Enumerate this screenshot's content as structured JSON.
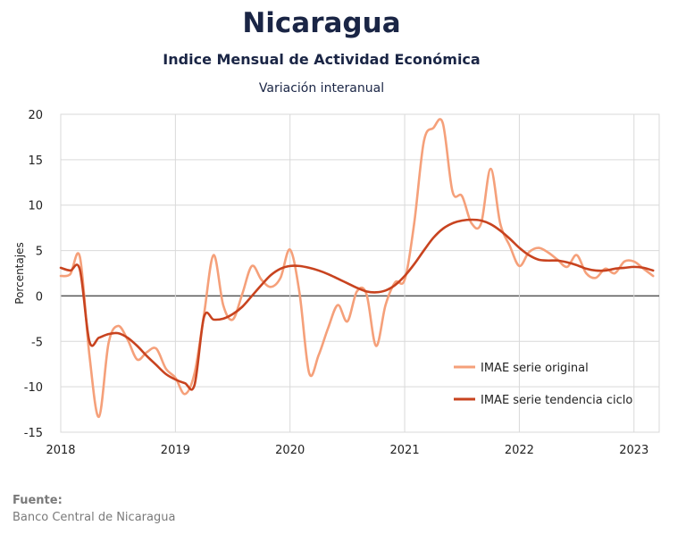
{
  "header": {
    "title": "Nicaragua",
    "subtitle": "Indice Mensual de  Actividad Económica",
    "subsubtitle": "Variación interanual"
  },
  "footer": {
    "source_label": "Fuente:",
    "source_text": "Banco Central de Nicaragua"
  },
  "colors": {
    "original": "#f5a07a",
    "trend": "#c8431f",
    "zero_line": "#555555",
    "grid": "#d9d9d9"
  },
  "chart_data": {
    "type": "line",
    "title": "Nicaragua",
    "subtitle": "Indice Mensual de  Actividad Económica",
    "xlabel": "",
    "ylabel": "Porcentajes",
    "xlim": [
      2018.0,
      2023.22
    ],
    "ylim": [
      -15,
      20
    ],
    "yticks": [
      20,
      15,
      10,
      5,
      0,
      -5,
      -10,
      -15
    ],
    "xticks": [
      2018,
      2019,
      2020,
      2021,
      2022,
      2023
    ],
    "xtick_labels": [
      "2018",
      "2019",
      "2020",
      "2021",
      "2022",
      "2023"
    ],
    "grid": true,
    "legend_position": "bottom-right",
    "series": [
      {
        "name": "IMAE serie original",
        "color": "#f5a07a",
        "x": [
          2018.0,
          2018.083,
          2018.167,
          2018.25,
          2018.333,
          2018.417,
          2018.5,
          2018.583,
          2018.667,
          2018.75,
          2018.833,
          2018.917,
          2019.0,
          2019.083,
          2019.167,
          2019.25,
          2019.333,
          2019.417,
          2019.5,
          2019.583,
          2019.667,
          2019.75,
          2019.833,
          2019.917,
          2020.0,
          2020.083,
          2020.167,
          2020.25,
          2020.333,
          2020.417,
          2020.5,
          2020.583,
          2020.667,
          2020.75,
          2020.833,
          2020.917,
          2021.0,
          2021.083,
          2021.167,
          2021.25,
          2021.333,
          2021.417,
          2021.5,
          2021.583,
          2021.667,
          2021.75,
          2021.833,
          2021.917,
          2022.0,
          2022.083,
          2022.167,
          2022.25,
          2022.333,
          2022.417,
          2022.5,
          2022.583,
          2022.667,
          2022.75,
          2022.833,
          2022.917,
          2023.0,
          2023.083,
          2023.167
        ],
        "values": [
          2.2,
          2.4,
          4.3,
          -6.5,
          -13.3,
          -5.2,
          -3.3,
          -4.8,
          -7.0,
          -6.2,
          -5.8,
          -8.0,
          -9.0,
          -10.8,
          -8.5,
          -2.0,
          4.5,
          -1.0,
          -2.6,
          0.2,
          3.3,
          1.8,
          1.0,
          2.0,
          5.1,
          0.3,
          -8.5,
          -6.5,
          -3.5,
          -1.0,
          -2.8,
          0.5,
          0.2,
          -5.5,
          -1.0,
          1.5,
          1.8,
          8.0,
          17.0,
          18.5,
          19.0,
          11.5,
          11.0,
          8.0,
          8.0,
          14.0,
          8.0,
          5.5,
          3.3,
          4.8,
          5.3,
          4.8,
          4.0,
          3.2,
          4.5,
          2.5,
          2.0,
          3.0,
          2.5,
          3.8,
          3.8,
          3.0,
          2.2
        ]
      },
      {
        "name": "IMAE serie  tendencia ciclo",
        "color": "#c8431f",
        "x": [
          2018.0,
          2018.083,
          2018.167,
          2018.25,
          2018.333,
          2018.417,
          2018.5,
          2018.583,
          2018.667,
          2018.75,
          2018.833,
          2018.917,
          2019.0,
          2019.083,
          2019.167,
          2019.25,
          2019.333,
          2019.417,
          2019.5,
          2019.583,
          2019.667,
          2019.75,
          2019.833,
          2019.917,
          2020.0,
          2020.083,
          2020.167,
          2020.25,
          2020.333,
          2020.417,
          2020.5,
          2020.583,
          2020.667,
          2020.75,
          2020.833,
          2020.917,
          2021.0,
          2021.083,
          2021.167,
          2021.25,
          2021.333,
          2021.417,
          2021.5,
          2021.583,
          2021.667,
          2021.75,
          2021.833,
          2021.917,
          2022.0,
          2022.083,
          2022.167,
          2022.25,
          2022.333,
          2022.417,
          2022.5,
          2022.583,
          2022.667,
          2022.75,
          2022.833,
          2022.917,
          2023.0,
          2023.083,
          2023.167
        ],
        "values": [
          3.1,
          2.8,
          2.9,
          -5.0,
          -4.6,
          -4.2,
          -4.1,
          -4.6,
          -5.5,
          -6.6,
          -7.6,
          -8.6,
          -9.2,
          -9.6,
          -9.8,
          -2.3,
          -2.6,
          -2.5,
          -2.0,
          -1.2,
          0.0,
          1.2,
          2.3,
          3.0,
          3.3,
          3.3,
          3.1,
          2.8,
          2.4,
          1.9,
          1.4,
          0.9,
          0.5,
          0.4,
          0.6,
          1.2,
          2.2,
          3.5,
          5.0,
          6.4,
          7.4,
          8.0,
          8.3,
          8.4,
          8.3,
          7.9,
          7.2,
          6.3,
          5.3,
          4.5,
          4.0,
          3.9,
          3.9,
          3.7,
          3.4,
          3.0,
          2.8,
          2.8,
          3.0,
          3.1,
          3.2,
          3.1,
          2.8
        ]
      }
    ]
  }
}
